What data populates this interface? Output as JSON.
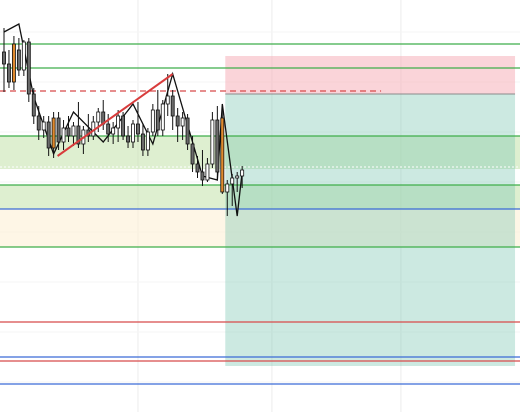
{
  "chart_data": {
    "type": "candlestick",
    "title": "",
    "xlabel": "",
    "ylabel": "",
    "ylim": [
      0,
      412
    ],
    "grid": true,
    "legend": "none",
    "colors": {
      "background": "#ffffff",
      "grid": "#ececec",
      "bull_body": "#ffffff",
      "bear_body": "#6b6b6b",
      "highlight_body": "#e08a2e",
      "wick": "#111111",
      "trend": "#d83c3c",
      "green_line": "#3fae4a",
      "red_line": "#d84b4b",
      "blue_line": "#3b6bd6",
      "green_zone": "rgba(195,225,170,0.55)",
      "cream_zone": "rgba(253,240,214,0.6)",
      "stop_zone": "rgba(245,170,180,0.5)",
      "target_zone": "rgba(120,196,176,0.38)"
    },
    "candles": [
      {
        "o": 360,
        "h": 384,
        "l": 320,
        "c": 348,
        "hl": false
      },
      {
        "o": 348,
        "h": 362,
        "l": 324,
        "c": 330,
        "hl": false
      },
      {
        "o": 330,
        "h": 376,
        "l": 322,
        "c": 368,
        "hl": true
      },
      {
        "o": 362,
        "h": 374,
        "l": 336,
        "c": 342,
        "hl": false
      },
      {
        "o": 342,
        "h": 372,
        "l": 336,
        "c": 370,
        "hl": false
      },
      {
        "o": 370,
        "h": 374,
        "l": 310,
        "c": 318,
        "hl": false
      },
      {
        "o": 318,
        "h": 324,
        "l": 288,
        "c": 296,
        "hl": false
      },
      {
        "o": 296,
        "h": 306,
        "l": 272,
        "c": 282,
        "hl": false
      },
      {
        "o": 282,
        "h": 296,
        "l": 274,
        "c": 290,
        "hl": false
      },
      {
        "o": 290,
        "h": 296,
        "l": 256,
        "c": 264,
        "hl": false
      },
      {
        "o": 264,
        "h": 300,
        "l": 254,
        "c": 294,
        "hl": true
      },
      {
        "o": 294,
        "h": 300,
        "l": 262,
        "c": 270,
        "hl": false
      },
      {
        "o": 270,
        "h": 292,
        "l": 262,
        "c": 284,
        "hl": false
      },
      {
        "o": 284,
        "h": 296,
        "l": 270,
        "c": 276,
        "hl": false
      },
      {
        "o": 276,
        "h": 290,
        "l": 266,
        "c": 286,
        "hl": false
      },
      {
        "o": 286,
        "h": 310,
        "l": 264,
        "c": 268,
        "hl": false
      },
      {
        "o": 268,
        "h": 286,
        "l": 258,
        "c": 282,
        "hl": false
      },
      {
        "o": 282,
        "h": 298,
        "l": 270,
        "c": 276,
        "hl": false
      },
      {
        "o": 276,
        "h": 296,
        "l": 272,
        "c": 290,
        "hl": false
      },
      {
        "o": 290,
        "h": 304,
        "l": 280,
        "c": 300,
        "hl": false
      },
      {
        "o": 300,
        "h": 312,
        "l": 282,
        "c": 288,
        "hl": false
      },
      {
        "o": 288,
        "h": 298,
        "l": 270,
        "c": 278,
        "hl": false
      },
      {
        "o": 278,
        "h": 290,
        "l": 268,
        "c": 284,
        "hl": false
      },
      {
        "o": 284,
        "h": 302,
        "l": 270,
        "c": 296,
        "hl": false
      },
      {
        "o": 296,
        "h": 300,
        "l": 272,
        "c": 276,
        "hl": false
      },
      {
        "o": 276,
        "h": 286,
        "l": 264,
        "c": 270,
        "hl": false
      },
      {
        "o": 270,
        "h": 292,
        "l": 264,
        "c": 288,
        "hl": false
      },
      {
        "o": 288,
        "h": 310,
        "l": 270,
        "c": 278,
        "hl": false
      },
      {
        "o": 278,
        "h": 288,
        "l": 256,
        "c": 262,
        "hl": false
      },
      {
        "o": 262,
        "h": 284,
        "l": 256,
        "c": 280,
        "hl": false
      },
      {
        "o": 280,
        "h": 308,
        "l": 276,
        "c": 302,
        "hl": false
      },
      {
        "o": 302,
        "h": 322,
        "l": 276,
        "c": 282,
        "hl": false
      },
      {
        "o": 282,
        "h": 312,
        "l": 276,
        "c": 308,
        "hl": false
      },
      {
        "o": 308,
        "h": 338,
        "l": 296,
        "c": 316,
        "hl": false
      },
      {
        "o": 316,
        "h": 322,
        "l": 282,
        "c": 296,
        "hl": false
      },
      {
        "o": 296,
        "h": 304,
        "l": 270,
        "c": 286,
        "hl": false
      },
      {
        "o": 286,
        "h": 300,
        "l": 272,
        "c": 294,
        "hl": false
      },
      {
        "o": 294,
        "h": 298,
        "l": 262,
        "c": 268,
        "hl": false
      },
      {
        "o": 268,
        "h": 276,
        "l": 240,
        "c": 248,
        "hl": false
      },
      {
        "o": 248,
        "h": 256,
        "l": 234,
        "c": 240,
        "hl": false
      },
      {
        "o": 240,
        "h": 262,
        "l": 226,
        "c": 232,
        "hl": false
      },
      {
        "o": 232,
        "h": 254,
        "l": 230,
        "c": 248,
        "hl": false
      },
      {
        "o": 248,
        "h": 300,
        "l": 244,
        "c": 292,
        "hl": false
      },
      {
        "o": 292,
        "h": 306,
        "l": 232,
        "c": 240,
        "hl": false
      },
      {
        "o": 294,
        "h": 306,
        "l": 218,
        "c": 220,
        "hl": true
      },
      {
        "o": 220,
        "h": 232,
        "l": 196,
        "c": 228,
        "hl": false
      },
      {
        "o": 228,
        "h": 238,
        "l": 206,
        "c": 234,
        "hl": false
      },
      {
        "o": 234,
        "h": 240,
        "l": 220,
        "c": 236,
        "hl": false
      },
      {
        "o": 236,
        "h": 246,
        "l": 224,
        "c": 242,
        "hl": false
      }
    ],
    "levels": [
      {
        "name": "green-level-1",
        "y": 368,
        "kind": "green"
      },
      {
        "name": "green-level-2",
        "y": 344,
        "kind": "green"
      },
      {
        "name": "green-level-3",
        "y": 276,
        "kind": "green"
      },
      {
        "name": "green-level-4",
        "y": 227,
        "kind": "green"
      },
      {
        "name": "blue-level-1",
        "y": 203,
        "kind": "blue"
      },
      {
        "name": "green-level-5",
        "y": 165,
        "kind": "green"
      },
      {
        "name": "red-level-1",
        "y": 90,
        "kind": "red"
      },
      {
        "name": "blue-level-2",
        "y": 55,
        "kind": "blue"
      },
      {
        "name": "red-level-2",
        "y": 51,
        "kind": "red"
      },
      {
        "name": "blue-level-3",
        "y": 28,
        "kind": "blue"
      }
    ],
    "entry_level": 245,
    "dashed_level": 321,
    "zones": [
      {
        "name": "support-zone-green",
        "y1": 243,
        "y2": 276,
        "kind": "green"
      },
      {
        "name": "support-zone-green-low",
        "y1": 203,
        "y2": 227,
        "kind": "green"
      },
      {
        "name": "support-zone-cream",
        "y1": 165,
        "y2": 203,
        "kind": "cream"
      }
    ],
    "position": {
      "entry": 318,
      "stop": 356,
      "target": 46,
      "start_index": 44.6,
      "end_index": 103
    },
    "trendlines": [
      {
        "name": "trend-line",
        "from": [
          10.8,
          256
        ],
        "to": [
          34,
          338
        ]
      },
      {
        "name": "swing-zigzag",
        "points": [
          [
            0,
            380
          ],
          [
            3,
            388
          ],
          [
            6,
            315
          ],
          [
            10,
            258
          ],
          [
            14,
            300
          ],
          [
            20,
            270
          ],
          [
            26,
            308
          ],
          [
            30,
            268
          ],
          [
            34,
            338
          ],
          [
            40,
            236
          ],
          [
            43,
            232
          ],
          [
            44,
            308
          ],
          [
            47,
            196
          ],
          [
            48,
            240
          ]
        ]
      }
    ],
    "x_domain": [
      0,
      104
    ]
  }
}
